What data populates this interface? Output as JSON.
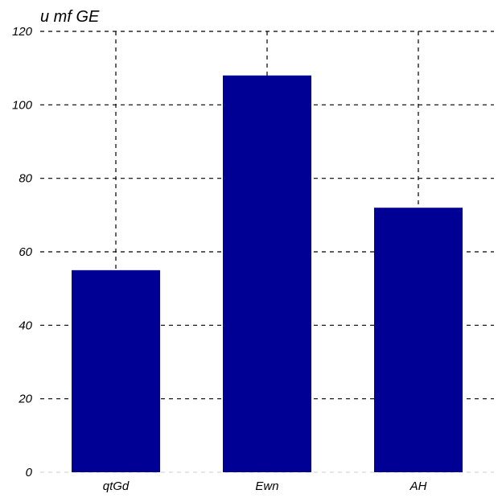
{
  "chart_data": {
    "type": "bar",
    "title": "u mf GE",
    "xlabel": "",
    "ylabel": "",
    "categories": [
      "qtGd",
      "Ewn",
      "AH"
    ],
    "values": [
      55,
      108,
      72
    ],
    "ylim": [
      0,
      120
    ],
    "yticks": [
      0,
      20,
      40,
      60,
      80,
      100,
      120
    ],
    "grid": true,
    "grid_style": "dashed",
    "legend": "none",
    "colors": {
      "bar": "#000094",
      "grid": "#000000",
      "baseline": "#cccccc",
      "background": "#ffffff"
    }
  }
}
